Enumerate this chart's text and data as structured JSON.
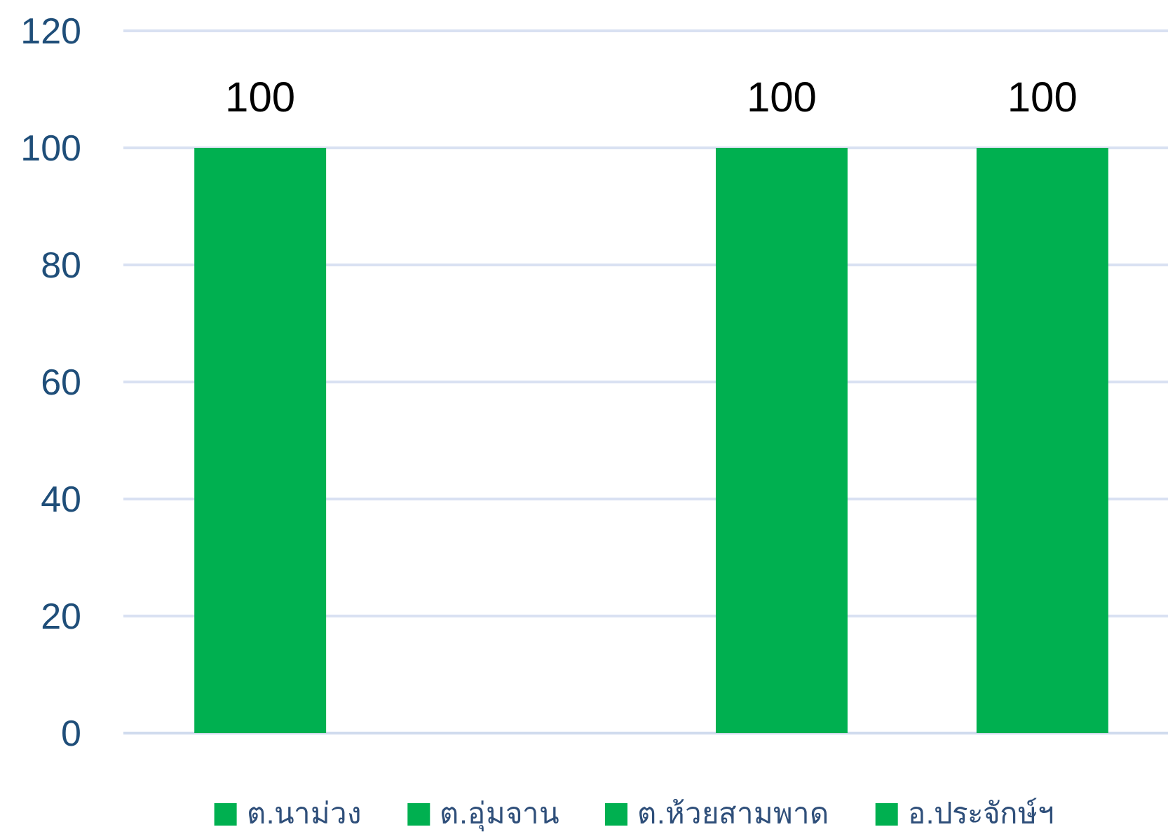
{
  "chart_data": {
    "type": "bar",
    "categories": [
      null
    ],
    "series": [
      {
        "name": "ต.นาม่วง",
        "color": "#00b050",
        "values": [
          100
        ]
      },
      {
        "name": "ต.อุ่มจาน",
        "color": "#00b050",
        "values": [
          null
        ]
      },
      {
        "name": "ต.ห้วยสามพาด",
        "color": "#00b050",
        "values": [
          100
        ]
      },
      {
        "name": "อ.ประจักษ์ฯ",
        "color": "#00b050",
        "values": [
          100
        ]
      }
    ],
    "ylim": [
      0,
      120
    ],
    "yticks": [
      0,
      20,
      40,
      60,
      80,
      100,
      120
    ],
    "grid": "y",
    "legend": "bottom",
    "data_labels": true
  }
}
